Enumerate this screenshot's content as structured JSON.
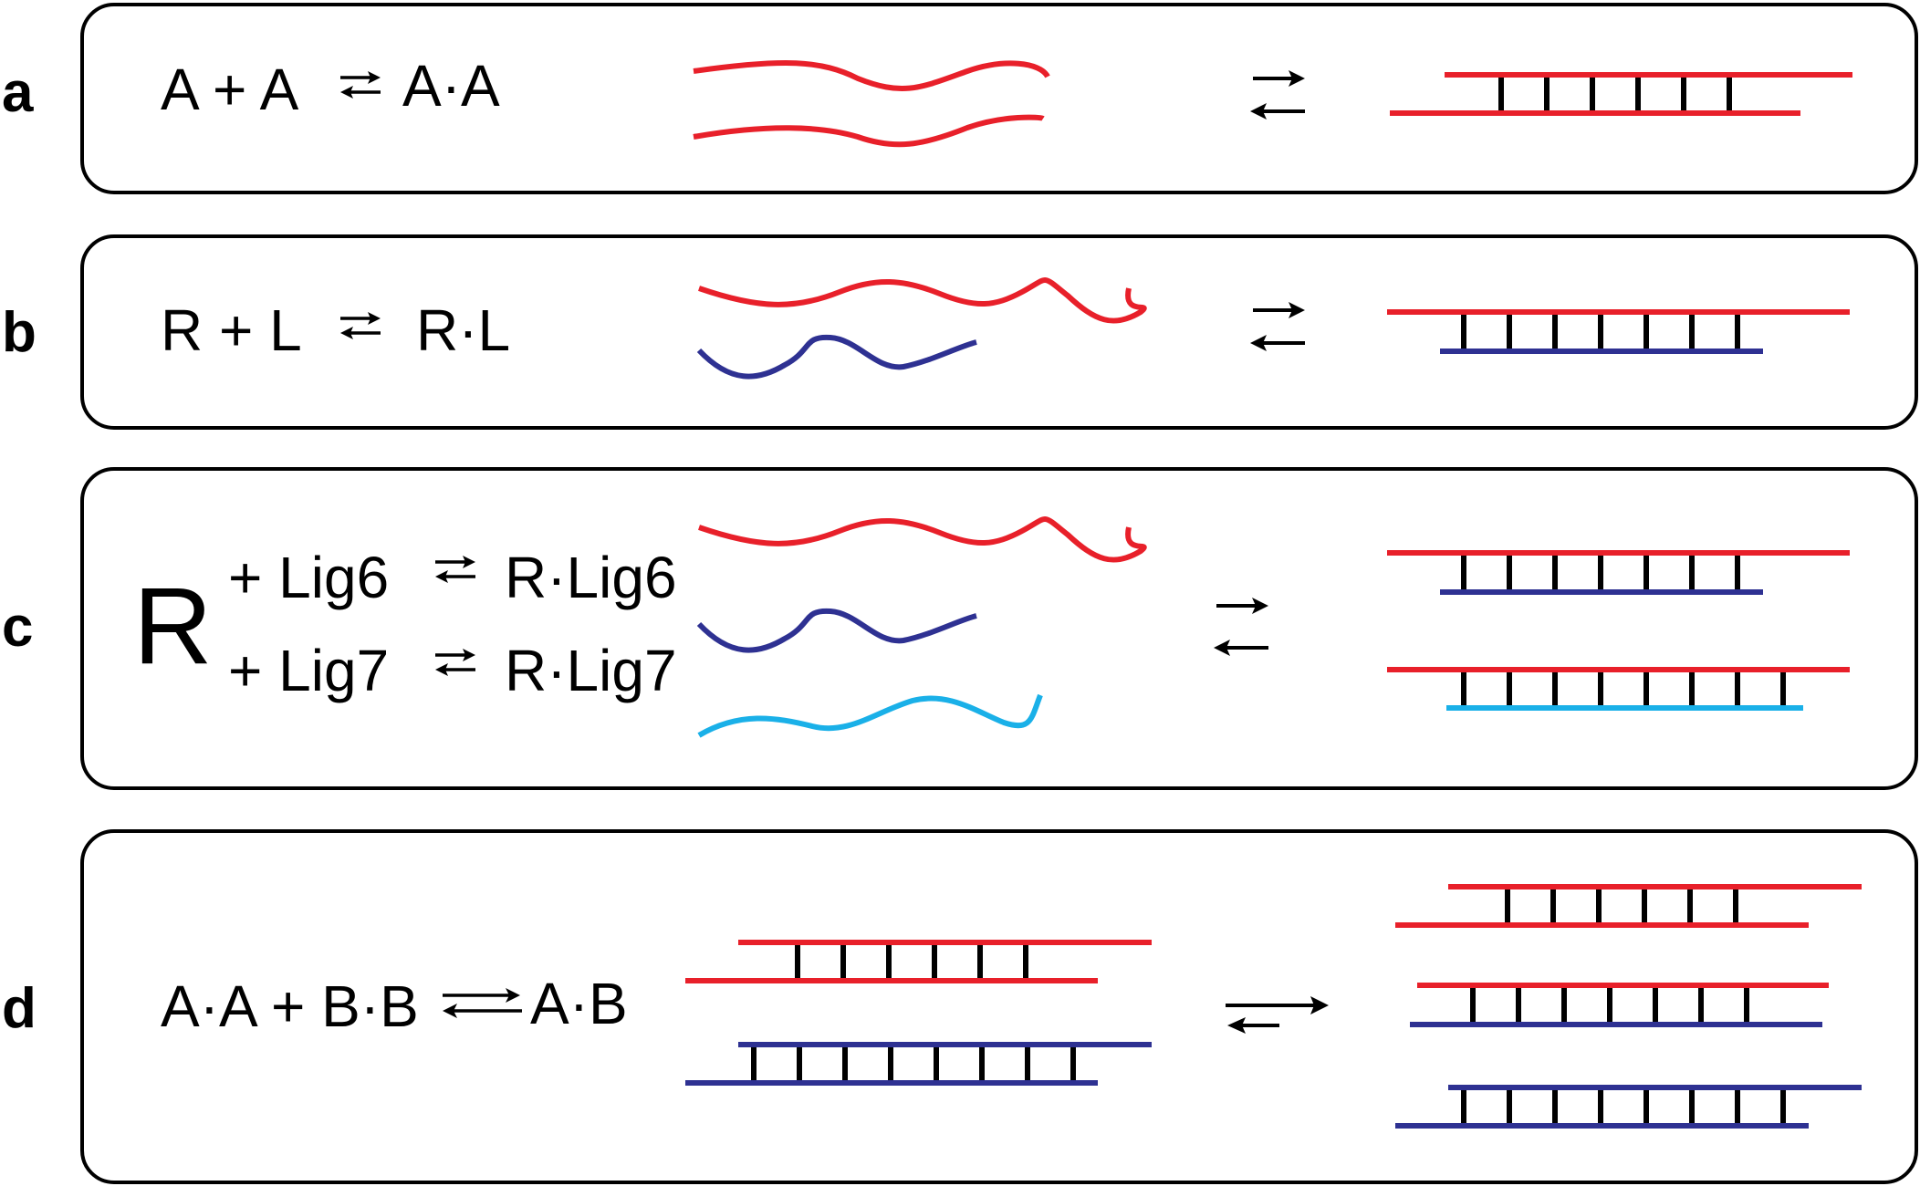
{
  "colors": {
    "red": "#e8202a",
    "navy": "#2e3192",
    "cyan": "#1ab0e8",
    "black": "#000000"
  },
  "panels": [
    {
      "letter": "a",
      "lines": [
        "A + A",
        "A·A"
      ]
    },
    {
      "letter": "b",
      "lines": [
        "R + L",
        "R·L"
      ]
    },
    {
      "letter": "c",
      "big": "R",
      "lines": [
        "+ Lig6",
        "R·Lig6",
        "+ Lig7",
        "R·Lig7"
      ]
    },
    {
      "letter": "d",
      "lines": [
        "A·A + B·B",
        "A·B"
      ]
    }
  ]
}
